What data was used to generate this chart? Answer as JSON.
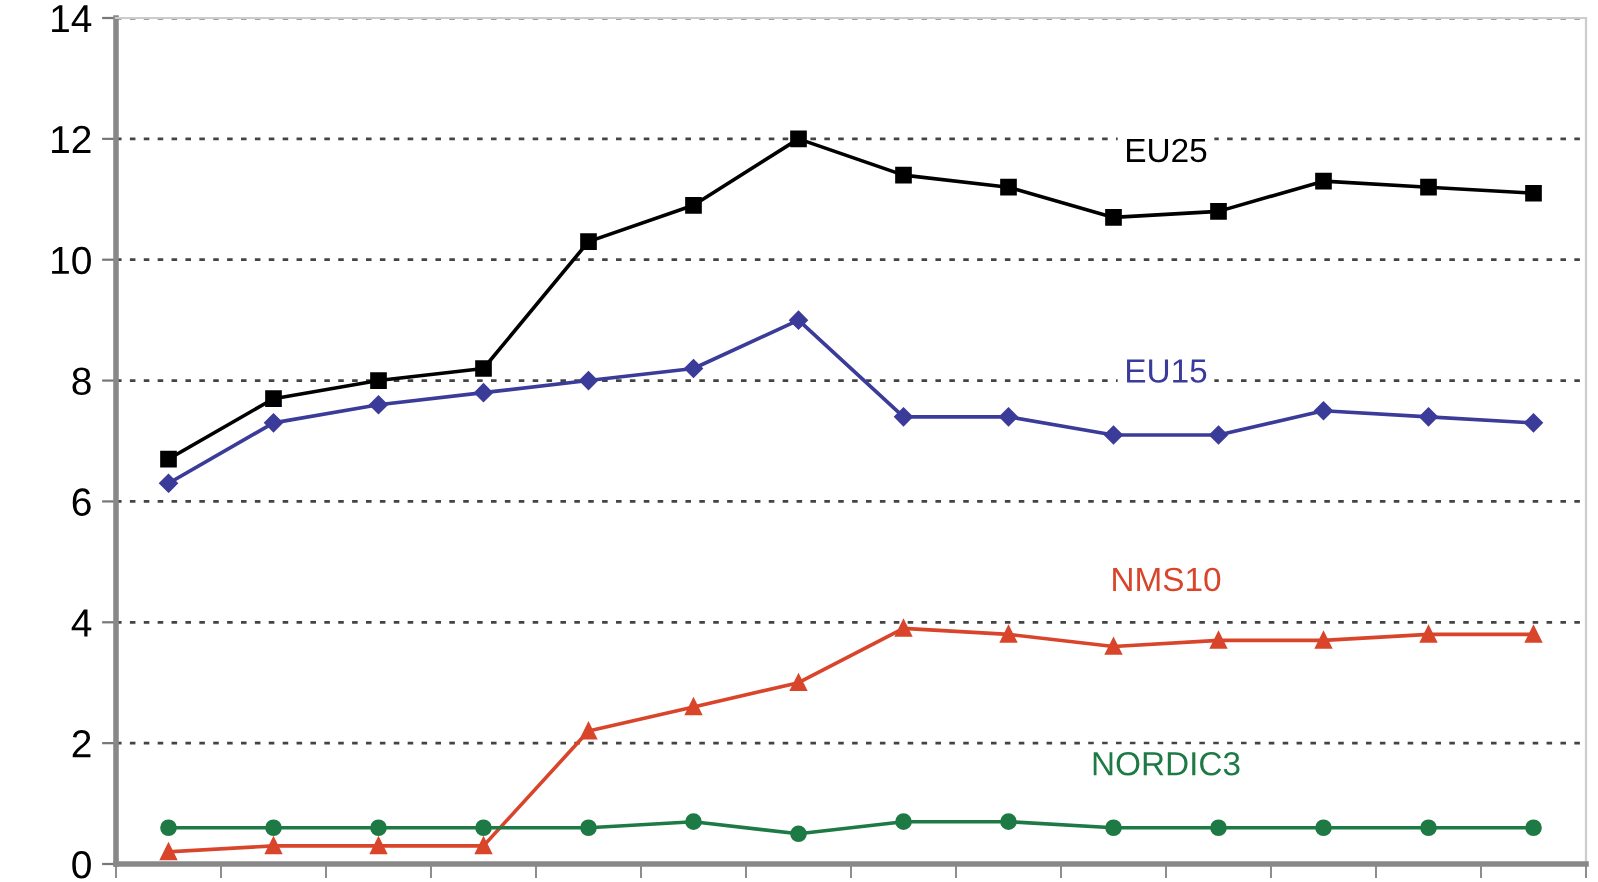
{
  "chart_data": {
    "type": "line",
    "categories": [
      null,
      null,
      null,
      null,
      null,
      null,
      null,
      null,
      null,
      null,
      null,
      null,
      null,
      null
    ],
    "ylim": [
      0,
      14
    ],
    "yticks": [
      0,
      2,
      4,
      6,
      8,
      10,
      12,
      14
    ],
    "grid": "y",
    "line_style": "solid",
    "series": [
      {
        "name": "EU25",
        "color": "#000000",
        "marker": "square",
        "values": [
          6.7,
          7.7,
          8.0,
          8.2,
          10.3,
          10.9,
          12.0,
          11.4,
          11.2,
          10.7,
          10.8,
          11.3,
          11.2,
          11.1
        ]
      },
      {
        "name": "EU15",
        "color": "#3b3b9a",
        "marker": "diamond",
        "values": [
          6.3,
          7.3,
          7.6,
          7.8,
          8.0,
          8.2,
          9.0,
          7.4,
          7.4,
          7.1,
          7.1,
          7.5,
          7.4,
          7.3
        ]
      },
      {
        "name": "NMS10",
        "color": "#d9452b",
        "marker": "triangle",
        "values": [
          0.2,
          0.3,
          0.3,
          0.3,
          2.2,
          2.6,
          3.0,
          3.9,
          3.8,
          3.6,
          3.7,
          3.7,
          3.8,
          3.8
        ]
      },
      {
        "name": "NORDIC3",
        "color": "#1e7a45",
        "marker": "circle",
        "values": [
          0.6,
          0.6,
          0.6,
          0.6,
          0.6,
          0.7,
          0.5,
          0.7,
          0.7,
          0.6,
          0.6,
          0.6,
          0.6,
          0.6
        ]
      }
    ]
  }
}
